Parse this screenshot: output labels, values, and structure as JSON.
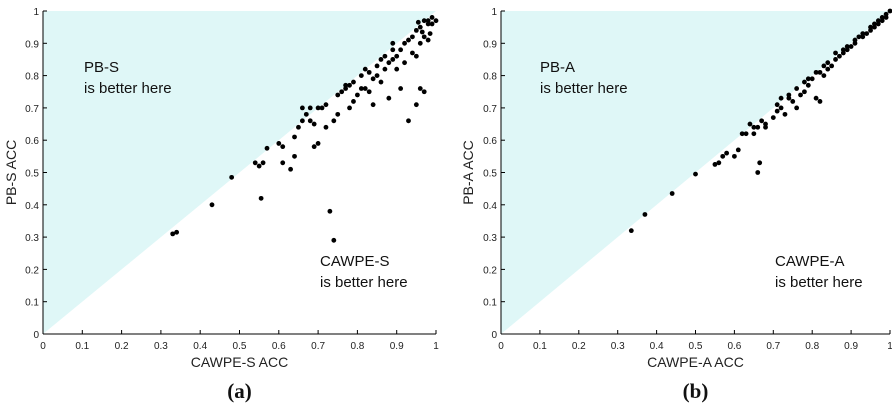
{
  "chart_data": [
    {
      "type": "scatter",
      "caption": "(a)",
      "xlabel": "CAWPE-S ACC",
      "ylabel": "PB-S ACC",
      "xlim": [
        0,
        1
      ],
      "ylim": [
        0,
        1
      ],
      "xticks": [
        "0",
        "0.1",
        "0.2",
        "0.3",
        "0.4",
        "0.5",
        "0.6",
        "0.7",
        "0.8",
        "0.9",
        "1"
      ],
      "yticks": [
        "0",
        "0.1",
        "0.2",
        "0.3",
        "0.4",
        "0.5",
        "0.6",
        "0.7",
        "0.8",
        "0.9",
        "1"
      ],
      "upper_region_label": [
        "PB-S",
        "is better here"
      ],
      "lower_region_label": [
        "CAWPE-S",
        "is better here"
      ],
      "shade_color": "#dff7f7",
      "point_color": "#000000",
      "points": [
        [
          0.33,
          0.31
        ],
        [
          0.34,
          0.315
        ],
        [
          0.43,
          0.4
        ],
        [
          0.48,
          0.485
        ],
        [
          0.54,
          0.53
        ],
        [
          0.55,
          0.52
        ],
        [
          0.555,
          0.42
        ],
        [
          0.56,
          0.53
        ],
        [
          0.57,
          0.575
        ],
        [
          0.6,
          0.59
        ],
        [
          0.61,
          0.58
        ],
        [
          0.61,
          0.53
        ],
        [
          0.63,
          0.51
        ],
        [
          0.64,
          0.55
        ],
        [
          0.64,
          0.61
        ],
        [
          0.65,
          0.64
        ],
        [
          0.66,
          0.66
        ],
        [
          0.66,
          0.7
        ],
        [
          0.67,
          0.68
        ],
        [
          0.68,
          0.66
        ],
        [
          0.68,
          0.7
        ],
        [
          0.69,
          0.58
        ],
        [
          0.69,
          0.65
        ],
        [
          0.7,
          0.59
        ],
        [
          0.7,
          0.7
        ],
        [
          0.71,
          0.7
        ],
        [
          0.72,
          0.71
        ],
        [
          0.72,
          0.64
        ],
        [
          0.73,
          0.38
        ],
        [
          0.74,
          0.29
        ],
        [
          0.74,
          0.66
        ],
        [
          0.75,
          0.68
        ],
        [
          0.75,
          0.74
        ],
        [
          0.76,
          0.75
        ],
        [
          0.77,
          0.76
        ],
        [
          0.77,
          0.77
        ],
        [
          0.78,
          0.7
        ],
        [
          0.78,
          0.77
        ],
        [
          0.79,
          0.72
        ],
        [
          0.79,
          0.78
        ],
        [
          0.8,
          0.74
        ],
        [
          0.81,
          0.76
        ],
        [
          0.81,
          0.8
        ],
        [
          0.82,
          0.82
        ],
        [
          0.82,
          0.76
        ],
        [
          0.83,
          0.81
        ],
        [
          0.83,
          0.75
        ],
        [
          0.84,
          0.71
        ],
        [
          0.84,
          0.79
        ],
        [
          0.85,
          0.8
        ],
        [
          0.85,
          0.83
        ],
        [
          0.86,
          0.85
        ],
        [
          0.86,
          0.78
        ],
        [
          0.87,
          0.86
        ],
        [
          0.87,
          0.82
        ],
        [
          0.88,
          0.73
        ],
        [
          0.88,
          0.84
        ],
        [
          0.89,
          0.88
        ],
        [
          0.89,
          0.9
        ],
        [
          0.89,
          0.85
        ],
        [
          0.9,
          0.82
        ],
        [
          0.9,
          0.86
        ],
        [
          0.91,
          0.76
        ],
        [
          0.91,
          0.88
        ],
        [
          0.92,
          0.9
        ],
        [
          0.92,
          0.84
        ],
        [
          0.93,
          0.66
        ],
        [
          0.93,
          0.91
        ],
        [
          0.94,
          0.92
        ],
        [
          0.94,
          0.87
        ],
        [
          0.95,
          0.71
        ],
        [
          0.95,
          0.86
        ],
        [
          0.95,
          0.94
        ],
        [
          0.96,
          0.95
        ],
        [
          0.96,
          0.9
        ],
        [
          0.96,
          0.76
        ],
        [
          0.97,
          0.97
        ],
        [
          0.97,
          0.92
        ],
        [
          0.97,
          0.75
        ],
        [
          0.98,
          0.97
        ],
        [
          0.98,
          0.96
        ],
        [
          0.98,
          0.91
        ],
        [
          0.99,
          0.98
        ],
        [
          0.99,
          0.96
        ],
        [
          1.0,
          0.97
        ],
        [
          0.985,
          0.93
        ],
        [
          0.965,
          0.935
        ],
        [
          0.955,
          0.965
        ]
      ]
    },
    {
      "type": "scatter",
      "caption": "(b)",
      "xlabel": "CAWPE-A ACC",
      "ylabel": "PB-A ACC",
      "xlim": [
        0,
        1
      ],
      "ylim": [
        0,
        1
      ],
      "xticks": [
        "0",
        "0.1",
        "0.2",
        "0.3",
        "0.4",
        "0.5",
        "0.6",
        "0.7",
        "0.8",
        "0.9",
        "1"
      ],
      "yticks": [
        "0",
        "0.1",
        "0.2",
        "0.3",
        "0.4",
        "0.5",
        "0.6",
        "0.7",
        "0.8",
        "0.9",
        "1"
      ],
      "upper_region_label": [
        "PB-A",
        "is better here"
      ],
      "lower_region_label": [
        "CAWPE-A",
        "is better here"
      ],
      "shade_color": "#dff7f7",
      "point_color": "#000000",
      "points": [
        [
          0.335,
          0.32
        ],
        [
          0.37,
          0.37
        ],
        [
          0.44,
          0.435
        ],
        [
          0.5,
          0.495
        ],
        [
          0.55,
          0.525
        ],
        [
          0.56,
          0.53
        ],
        [
          0.57,
          0.55
        ],
        [
          0.58,
          0.56
        ],
        [
          0.6,
          0.55
        ],
        [
          0.61,
          0.57
        ],
        [
          0.62,
          0.62
        ],
        [
          0.63,
          0.62
        ],
        [
          0.65,
          0.64
        ],
        [
          0.65,
          0.62
        ],
        [
          0.66,
          0.5
        ],
        [
          0.665,
          0.53
        ],
        [
          0.66,
          0.64
        ],
        [
          0.67,
          0.66
        ],
        [
          0.68,
          0.65
        ],
        [
          0.68,
          0.64
        ],
        [
          0.7,
          0.67
        ],
        [
          0.71,
          0.69
        ],
        [
          0.72,
          0.7
        ],
        [
          0.72,
          0.73
        ],
        [
          0.73,
          0.68
        ],
        [
          0.74,
          0.74
        ],
        [
          0.75,
          0.72
        ],
        [
          0.76,
          0.76
        ],
        [
          0.76,
          0.7
        ],
        [
          0.77,
          0.74
        ],
        [
          0.78,
          0.78
        ],
        [
          0.78,
          0.75
        ],
        [
          0.79,
          0.77
        ],
        [
          0.8,
          0.79
        ],
        [
          0.81,
          0.81
        ],
        [
          0.81,
          0.73
        ],
        [
          0.82,
          0.81
        ],
        [
          0.82,
          0.72
        ],
        [
          0.83,
          0.83
        ],
        [
          0.83,
          0.8
        ],
        [
          0.84,
          0.84
        ],
        [
          0.85,
          0.83
        ],
        [
          0.86,
          0.85
        ],
        [
          0.86,
          0.87
        ],
        [
          0.87,
          0.86
        ],
        [
          0.88,
          0.87
        ],
        [
          0.88,
          0.88
        ],
        [
          0.89,
          0.88
        ],
        [
          0.9,
          0.89
        ],
        [
          0.91,
          0.9
        ],
        [
          0.91,
          0.91
        ],
        [
          0.92,
          0.92
        ],
        [
          0.93,
          0.92
        ],
        [
          0.93,
          0.93
        ],
        [
          0.94,
          0.93
        ],
        [
          0.95,
          0.95
        ],
        [
          0.95,
          0.94
        ],
        [
          0.96,
          0.96
        ],
        [
          0.96,
          0.95
        ],
        [
          0.97,
          0.97
        ],
        [
          0.97,
          0.96
        ],
        [
          0.98,
          0.98
        ],
        [
          0.98,
          0.97
        ],
        [
          0.99,
          0.99
        ],
        [
          1.0,
          1.0
        ],
        [
          0.99,
          0.98
        ],
        [
          0.89,
          0.89
        ],
        [
          0.84,
          0.82
        ],
        [
          0.79,
          0.79
        ],
        [
          0.74,
          0.73
        ],
        [
          0.71,
          0.71
        ],
        [
          0.64,
          0.65
        ]
      ]
    }
  ]
}
